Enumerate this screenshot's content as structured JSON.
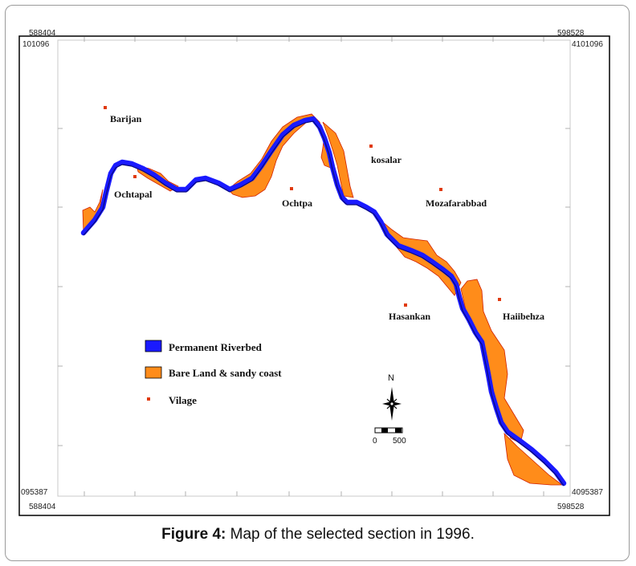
{
  "figure": {
    "caption_label": "Figure 4:",
    "caption_text": " Map of the selected section in 1996."
  },
  "coordinates": {
    "top_left_x": "588404",
    "top_right_x": "598528",
    "bottom_left_x": "588404",
    "bottom_right_x": "598528",
    "top_left_y": "101096",
    "top_right_y": "4101096",
    "bottom_left_y": "095387",
    "bottom_right_y": "4095387"
  },
  "villages": [
    {
      "name": "Barijan"
    },
    {
      "name": "Ochtapal"
    },
    {
      "name": "Ochtpa"
    },
    {
      "name": "kosalar"
    },
    {
      "name": "Mozafarabbad"
    },
    {
      "name": "Hasankan"
    },
    {
      "name": "Haiibehza"
    }
  ],
  "legend": {
    "items": [
      {
        "label": "Permanent Riverbed",
        "color": "#1a1aff"
      },
      {
        "label": "Bare Land & sandy coast",
        "color": "#ff8c1a"
      },
      {
        "label": "Vilage",
        "color": "#e03a10"
      }
    ]
  },
  "north_arrow": {
    "label": "N"
  },
  "scale_bar": {
    "min_label": "0",
    "max_label": "500"
  }
}
